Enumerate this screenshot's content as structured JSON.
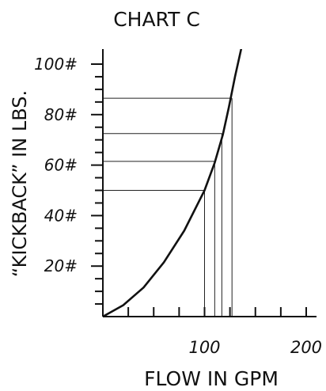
{
  "chart_data": {
    "type": "line",
    "title": "CHART C",
    "xlabel": "FLOW IN GPM",
    "ylabel": "“KICKBACK” IN LBS.",
    "xlim": [
      0,
      220
    ],
    "ylim": [
      0,
      105
    ],
    "x_ticks": [
      {
        "value": 100,
        "label": "100"
      },
      {
        "value": 200,
        "label": "200"
      }
    ],
    "x_minor_ticks": [
      25,
      50,
      75,
      100,
      125,
      150,
      175,
      200
    ],
    "y_ticks": [
      {
        "value": 20,
        "label": "20#"
      },
      {
        "value": 40,
        "label": "40#"
      },
      {
        "value": 60,
        "label": "60#"
      },
      {
        "value": 80,
        "label": "80#"
      },
      {
        "value": 100,
        "label": "100#"
      }
    ],
    "y_minor_step": 5,
    "grid": false,
    "series": [
      {
        "x": [
          0,
          20,
          40,
          60,
          80,
          100,
          110,
          118,
          124,
          130,
          136
        ],
        "y": [
          0,
          4.5,
          11.5,
          21.5,
          34,
          50,
          61,
          72,
          83,
          95,
          106
        ]
      }
    ],
    "reference_points": [
      {
        "x": 100,
        "y": 50
      },
      {
        "x": 110,
        "y": 61.5
      },
      {
        "x": 117,
        "y": 72.5
      },
      {
        "x": 127,
        "y": 86.5
      }
    ]
  }
}
